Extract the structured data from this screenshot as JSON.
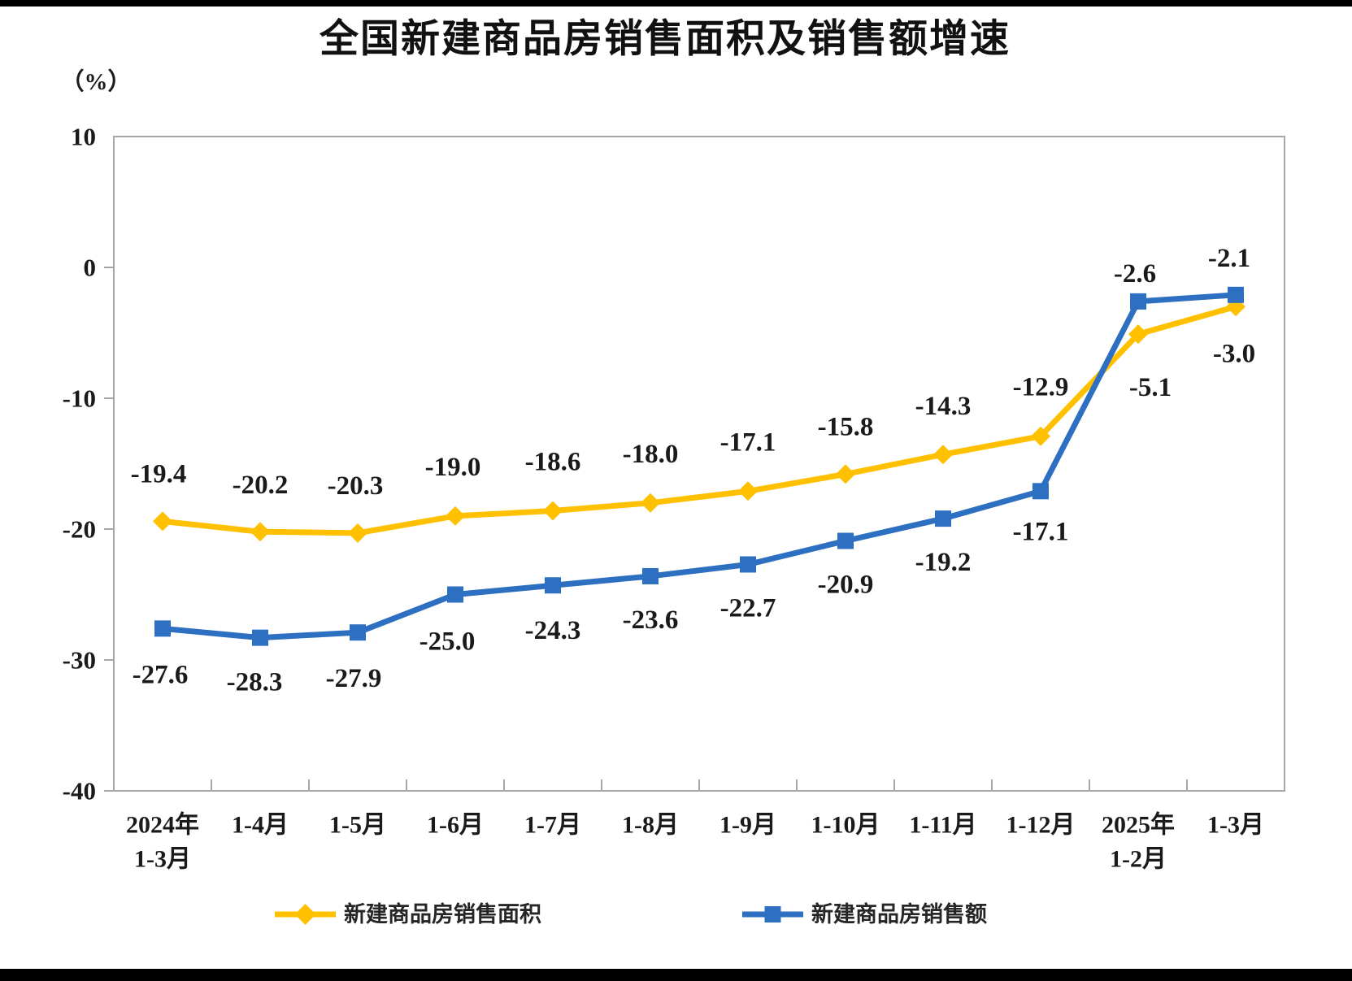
{
  "title": "全国新建商品房销售面积及销售额增速",
  "y_axis": {
    "unit": "（%）",
    "ticks": [
      10,
      0,
      -10,
      -20,
      -30,
      -40
    ]
  },
  "chart_data": {
    "type": "line",
    "title": "全国新建商品房销售面积及销售额增速",
    "ylabel": "（%）",
    "xlabel": "",
    "ylim": [
      -40,
      10
    ],
    "grid": false,
    "legend_position": "bottom",
    "plot_border_color": "#a6a6a6",
    "categories": [
      [
        "2024年",
        "1-3月"
      ],
      [
        "1-4月"
      ],
      [
        "1-5月"
      ],
      [
        "1-6月"
      ],
      [
        "1-7月"
      ],
      [
        "1-8月"
      ],
      [
        "1-9月"
      ],
      [
        "1-10月"
      ],
      [
        "1-11月"
      ],
      [
        "1-12月"
      ],
      [
        "2025年",
        "1-2月"
      ],
      [
        "1-3月"
      ]
    ],
    "series": [
      {
        "name": "新建商品房销售面积",
        "color": "#FFC000",
        "marker": "diamond",
        "values": [
          -19.4,
          -20.2,
          -20.3,
          -19.0,
          -18.6,
          -18.0,
          -17.1,
          -15.8,
          -14.3,
          -12.9,
          -5.1,
          -3.0
        ]
      },
      {
        "name": "新建商品房销售额",
        "color": "#2D6FC1",
        "marker": "square",
        "values": [
          -27.6,
          -28.3,
          -27.9,
          -25.0,
          -24.3,
          -23.6,
          -22.7,
          -20.9,
          -19.2,
          -17.1,
          -2.6,
          -2.1
        ]
      }
    ]
  }
}
